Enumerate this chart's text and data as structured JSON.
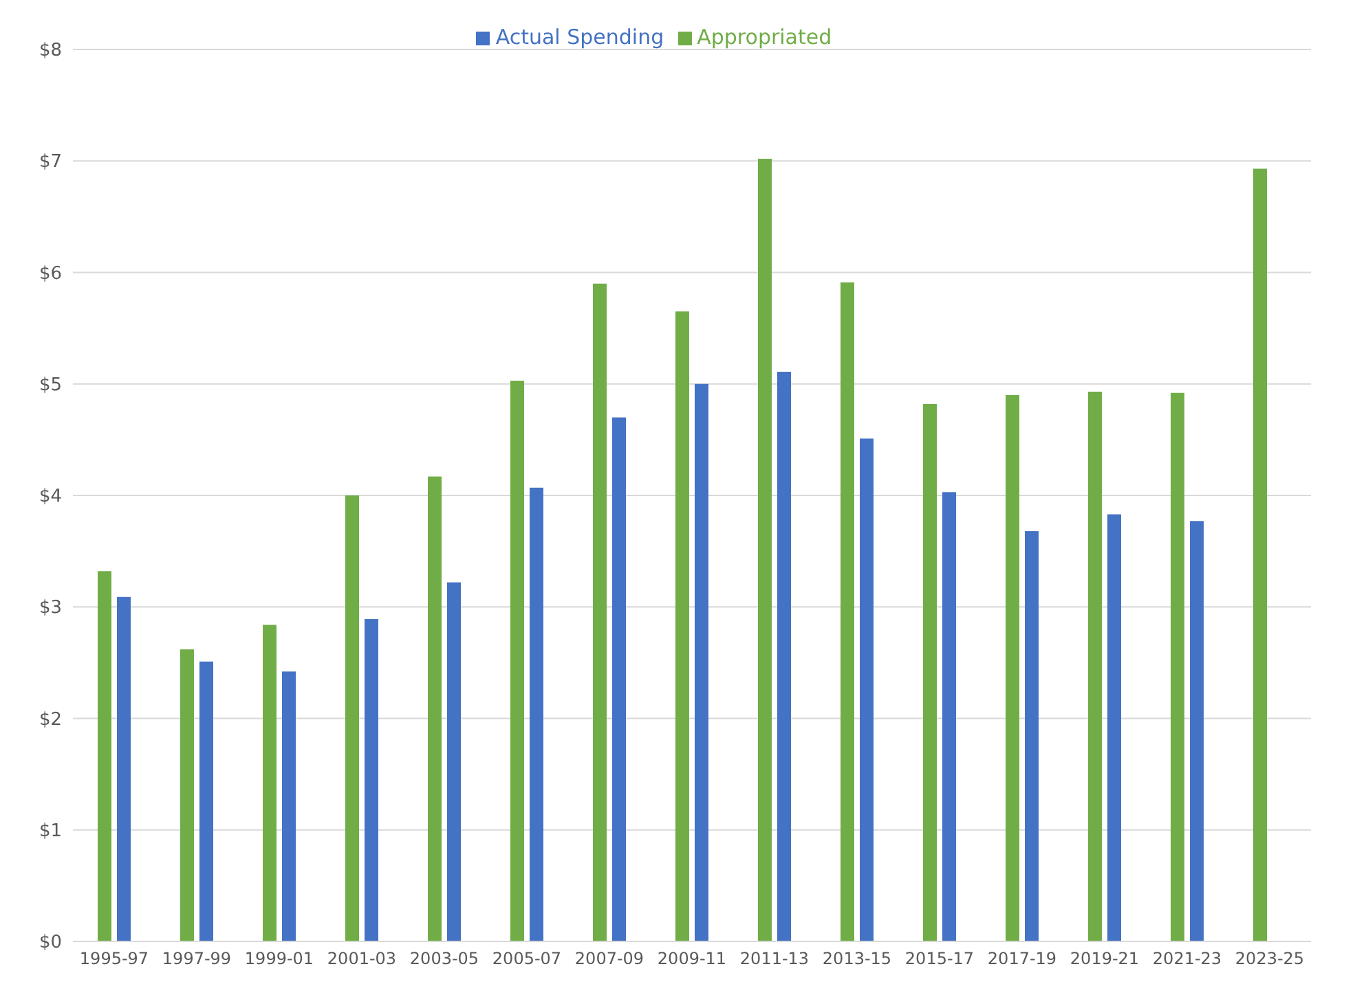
{
  "chart_data": {
    "type": "bar",
    "categories": [
      "1995-97",
      "1997-99",
      "1999-01",
      "2001-03",
      "2003-05",
      "2005-07",
      "2007-09",
      "2009-11",
      "2011-13",
      "2013-15",
      "2015-17",
      "2017-19",
      "2019-21",
      "2021-23",
      "2023-25"
    ],
    "series": [
      {
        "name": "Appropriated",
        "color": "#70ad47",
        "values": [
          3.32,
          2.62,
          2.84,
          4.0,
          4.17,
          5.03,
          5.9,
          5.65,
          7.02,
          5.91,
          4.82,
          4.9,
          4.93,
          4.92,
          6.93
        ]
      },
      {
        "name": "Actual Spending",
        "color": "#4472c4",
        "values": [
          3.09,
          2.51,
          2.42,
          2.89,
          3.22,
          4.07,
          4.7,
          5.0,
          5.11,
          4.51,
          4.03,
          3.68,
          3.83,
          3.77,
          null
        ]
      }
    ],
    "ylim": [
      0,
      8
    ],
    "yticks": [
      {
        "value": 0,
        "label": "$0"
      },
      {
        "value": 1,
        "label": "$1"
      },
      {
        "value": 2,
        "label": "$2"
      },
      {
        "value": 3,
        "label": "$3"
      },
      {
        "value": 4,
        "label": "$4"
      },
      {
        "value": 5,
        "label": "$5"
      },
      {
        "value": 6,
        "label": "$6"
      },
      {
        "value": 7,
        "label": "$7"
      },
      {
        "value": 8,
        "label": "$8"
      }
    ],
    "grid": "y",
    "legend": "top"
  }
}
